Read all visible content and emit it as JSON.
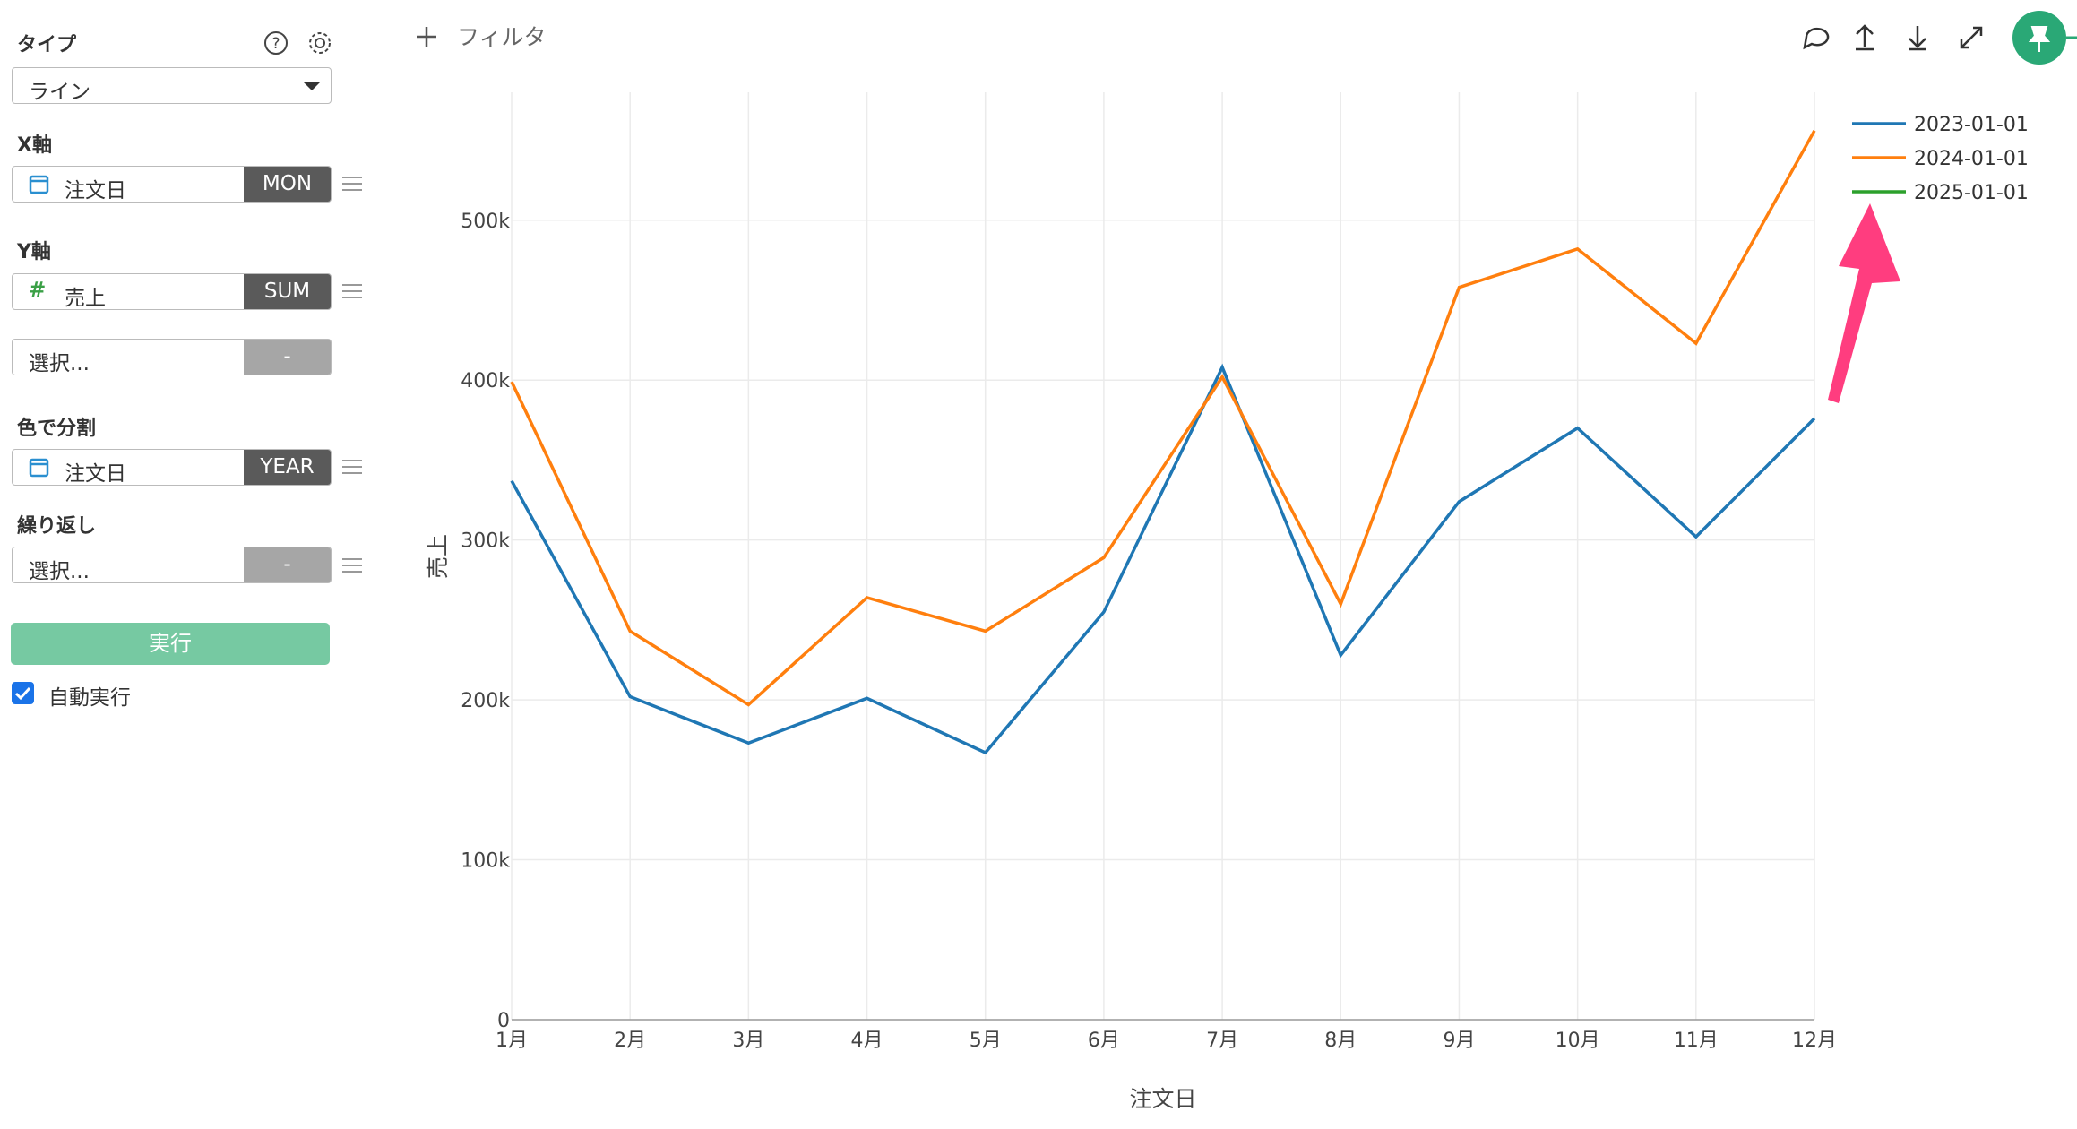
{
  "toolbar": {
    "filter": "フィルタ"
  },
  "sidebar": {
    "type_label": "タイプ",
    "type_value": "ライン",
    "x_axis": {
      "label": "X軸",
      "field": "注文日",
      "agg": "MON"
    },
    "y_axis": {
      "label": "Y軸",
      "field": "売上",
      "agg": "SUM"
    },
    "y_extra": {
      "field": "選択...",
      "agg": "-"
    },
    "color_split": {
      "label": "色で分割",
      "field": "注文日",
      "agg": "YEAR"
    },
    "repeat": {
      "label": "繰り返し",
      "field": "選択...",
      "agg": "-"
    },
    "run": "実行",
    "auto_run": "自動実行"
  },
  "chart_data": {
    "type": "line",
    "x_label": "注文日",
    "y_label": "売上",
    "categories": [
      "1月",
      "2月",
      "3月",
      "4月",
      "5月",
      "6月",
      "7月",
      "8月",
      "9月",
      "10月",
      "11月",
      "12月"
    ],
    "series": [
      {
        "name": "2023-01-01",
        "color": "#1f77b4",
        "values": [
          337000,
          202000,
          173000,
          201000,
          167000,
          255000,
          408000,
          228000,
          324000,
          370000,
          302000,
          376000
        ]
      },
      {
        "name": "2024-01-01",
        "color": "#ff7f0e",
        "values": [
          399000,
          243000,
          197000,
          264000,
          243000,
          289000,
          402000,
          260000,
          458000,
          482000,
          423000,
          556000
        ]
      },
      {
        "name": "2025-01-01",
        "color": "#2ca02c",
        "values": [
          null,
          null,
          null,
          null,
          null,
          null,
          null,
          null,
          null,
          null,
          null,
          null
        ]
      }
    ],
    "ylim": [
      0,
      580000
    ],
    "yticks": [
      0,
      {
        "value": 100000,
        "label": "100k"
      },
      {
        "value": 200000,
        "label": "200k"
      },
      {
        "value": 300000,
        "label": "300k"
      },
      {
        "value": 400000,
        "label": "400k"
      },
      {
        "value": 500000,
        "label": "500k"
      }
    ],
    "grid": true,
    "legend": "top-right"
  }
}
